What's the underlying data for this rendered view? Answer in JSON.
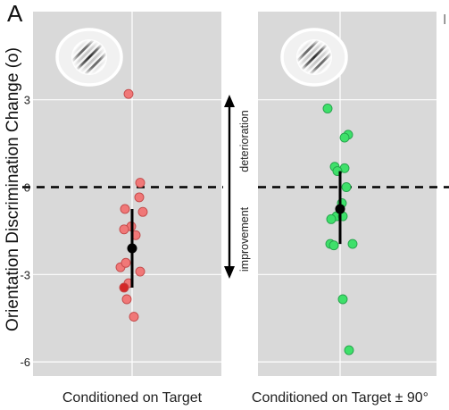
{
  "figure": {
    "panel_letter": "A",
    "edge_glyph": "I",
    "y_axis_title": "Orientation Discrimination Change",
    "y_axis_unit": "(o)",
    "arrow_up_label": "deterioration",
    "arrow_down_label": "improvement",
    "grating_icon": "gabor-patch-icon",
    "colors": {
      "panel_bg": "#d9d9d9",
      "grid": "#ffffff",
      "red_points": "#f07878",
      "red_edge": "#c24848",
      "red_highlight": "#d42828",
      "green_points": "#3ee06a",
      "green_edge": "#24a04a",
      "mean_marker": "#000000"
    }
  },
  "chart_data": [
    {
      "type": "scatter",
      "name": "target",
      "xlabel": "Conditioned on Target",
      "ylabel": "Orientation Discrimination Change (o)",
      "ylim": [
        -6.6,
        5.4
      ],
      "yticks": [
        3,
        0,
        -3,
        -6
      ],
      "ytick_labels": [
        "3",
        "0",
        "-3",
        "-6"
      ],
      "reference_line": 0,
      "points": [
        {
          "x": -0.04,
          "y": 3.2
        },
        {
          "x": 0.09,
          "y": 0.15
        },
        {
          "x": 0.08,
          "y": -0.35
        },
        {
          "x": -0.08,
          "y": -0.75
        },
        {
          "x": 0.12,
          "y": -0.85
        },
        {
          "x": -0.01,
          "y": -1.35
        },
        {
          "x": -0.09,
          "y": -1.45
        },
        {
          "x": 0.04,
          "y": -1.65
        },
        {
          "x": -0.13,
          "y": -2.75
        },
        {
          "x": -0.07,
          "y": -2.6
        },
        {
          "x": 0.09,
          "y": -2.9
        },
        {
          "x": -0.04,
          "y": -3.3
        },
        {
          "x": -0.09,
          "y": -3.45,
          "highlight": true
        },
        {
          "x": -0.06,
          "y": -3.85
        },
        {
          "x": 0.02,
          "y": -4.45
        }
      ],
      "mean": -2.1,
      "error_bar": [
        -3.45,
        -0.75
      ]
    },
    {
      "type": "scatter",
      "name": "target_plus_90",
      "xlabel": "Conditioned on Target ± 90°",
      "ylim": [
        -6.6,
        5.4
      ],
      "reference_line": 0,
      "points": [
        {
          "x": -0.14,
          "y": 2.7
        },
        {
          "x": 0.09,
          "y": 1.8
        },
        {
          "x": 0.05,
          "y": 1.7
        },
        {
          "x": -0.06,
          "y": 0.7
        },
        {
          "x": 0.05,
          "y": 0.65
        },
        {
          "x": -0.03,
          "y": 0.55
        },
        {
          "x": 0.07,
          "y": 0.0
        },
        {
          "x": 0.02,
          "y": -0.55
        },
        {
          "x": -0.04,
          "y": -1.0
        },
        {
          "x": 0.03,
          "y": -1.0
        },
        {
          "x": -0.1,
          "y": -1.1
        },
        {
          "x": -0.11,
          "y": -1.95
        },
        {
          "x": -0.07,
          "y": -2.0
        },
        {
          "x": 0.14,
          "y": -1.95
        },
        {
          "x": 0.03,
          "y": -3.85
        },
        {
          "x": 0.1,
          "y": -5.6
        }
      ],
      "mean": -0.75,
      "error_bar": [
        -1.95,
        0.55
      ]
    }
  ]
}
